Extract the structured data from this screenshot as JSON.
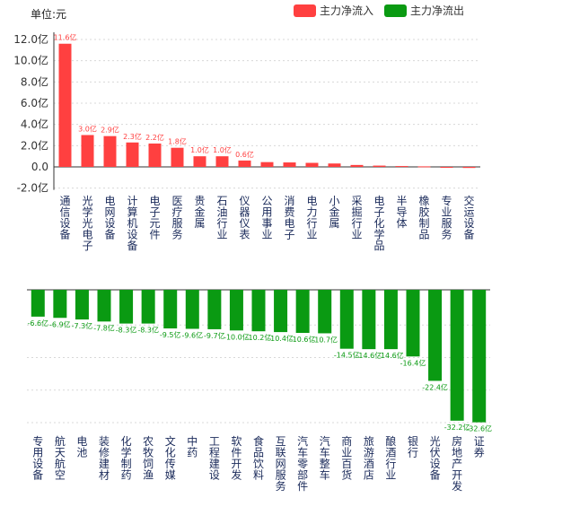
{
  "unit_label": "单位:元",
  "legend": [
    {
      "label": "主力净流入",
      "color": "#ff4040"
    },
    {
      "label": "主力净流出",
      "color": "#0a9a12"
    }
  ],
  "chart_data": [
    {
      "type": "bar",
      "name": "inflow",
      "color": "#ff4040",
      "unit": "亿",
      "ylim": [
        -2,
        12
      ],
      "yticks": [
        "-2.0亿",
        "0.0",
        "2.0亿",
        "4.0亿",
        "6.0亿",
        "8.0亿",
        "10.0亿",
        "12.0亿"
      ],
      "ytick_values": [
        -2,
        0,
        2,
        4,
        6,
        8,
        10,
        12
      ],
      "grid": true,
      "categories": [
        "通信设备",
        "光学光电子",
        "电网设备",
        "计算机设备",
        "电子元件",
        "医疗服务",
        "贵金属",
        "石油行业",
        "仪器仪表",
        "公用事业",
        "消费电子",
        "电力行业",
        "小金属",
        "采掘行业",
        "电子化学品",
        "半导体",
        "橡胶制品",
        "专业服务",
        "交运设备"
      ],
      "values": [
        11.6,
        3.0,
        2.9,
        2.3,
        2.2,
        1.8,
        1.0,
        1.0,
        0.6,
        0.45,
        0.42,
        0.38,
        0.32,
        0.18,
        0.12,
        0.08,
        0.05,
        -0.08,
        -0.1
      ],
      "labels": [
        "11.6亿",
        "3.0亿",
        "2.9亿",
        "2.3亿",
        "2.2亿",
        "1.8亿",
        "1.0亿",
        "1.0亿",
        "0.6亿",
        "",
        "",
        "",
        "",
        "",
        "",
        "",
        "",
        "",
        ""
      ]
    },
    {
      "type": "bar",
      "name": "outflow",
      "color": "#0a9a12",
      "unit": "亿",
      "ylim": [
        -34,
        0
      ],
      "grid": true,
      "categories": [
        "专用设备",
        "航天航空",
        "电池",
        "装修建材",
        "化学制药",
        "农牧饲渔",
        "文化传媒",
        "中药",
        "工程建设",
        "软件开发",
        "食品饮料",
        "互联网服务",
        "汽车零部件",
        "汽车整车",
        "商业百货",
        "旅游酒店",
        "酿酒行业",
        "银行",
        "光伏设备",
        "房地产开发",
        "证券"
      ],
      "values": [
        -6.6,
        -6.9,
        -7.3,
        -7.8,
        -8.3,
        -8.3,
        -9.5,
        -9.6,
        -9.7,
        -10.0,
        -10.2,
        -10.4,
        -10.6,
        -10.7,
        -14.5,
        -14.6,
        -14.6,
        -16.4,
        -22.4,
        -32.2,
        -32.6
      ],
      "labels": [
        "-6.6亿",
        "-6.9亿",
        "-7.3亿",
        "-7.8亿",
        "-8.3亿",
        "-8.3亿",
        "-9.5亿",
        "-9.6亿",
        "-9.7亿",
        "-10.0亿",
        "-10.2亿",
        "-10.4亿",
        "-10.6亿",
        "-10.7亿",
        "-14.5亿",
        "-14.6亿",
        "-14.6亿",
        "-16.4亿",
        "-22.4亿",
        "-32.2亿",
        "-32.6亿"
      ]
    }
  ]
}
